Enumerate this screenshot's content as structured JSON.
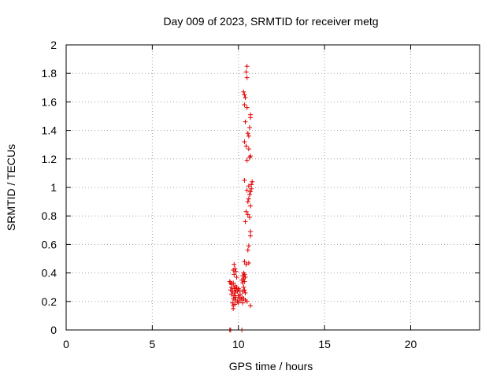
{
  "chart_data": {
    "type": "scatter",
    "title": "Day 009 of 2023, SRMTID for receiver metg",
    "xlabel": "GPS time / hours",
    "ylabel": "SRMTID / TECUs",
    "xlim": [
      0,
      24
    ],
    "ylim": [
      0,
      2
    ],
    "xticks": [
      0,
      5,
      10,
      15,
      20
    ],
    "xtick_labels": [
      "0",
      "5",
      "10",
      "15",
      "20"
    ],
    "yticks": [
      0,
      0.2,
      0.4,
      0.6,
      0.8,
      1.0,
      1.2,
      1.4,
      1.6,
      1.8,
      2.0
    ],
    "ytick_labels": [
      "0",
      "0.2",
      "0.4",
      "0.6",
      "0.8",
      "1",
      "1.2",
      "1.4",
      "1.6",
      "1.8",
      "2"
    ],
    "grid": true,
    "marker": "plus",
    "color": "#e00000",
    "series": [
      {
        "points": [
          [
            9.5,
            0.0
          ],
          [
            9.55,
            0.0
          ],
          [
            10.2,
            0.0
          ],
          [
            10.5,
            1.85
          ],
          [
            10.45,
            1.81
          ],
          [
            10.5,
            1.77
          ],
          [
            10.3,
            1.67
          ],
          [
            10.35,
            1.65
          ],
          [
            10.4,
            1.63
          ],
          [
            10.35,
            1.58
          ],
          [
            10.5,
            1.56
          ],
          [
            10.7,
            1.51
          ],
          [
            10.7,
            1.49
          ],
          [
            10.4,
            1.46
          ],
          [
            10.65,
            1.42
          ],
          [
            10.55,
            1.38
          ],
          [
            10.6,
            1.36
          ],
          [
            10.35,
            1.32
          ],
          [
            10.45,
            1.29
          ],
          [
            10.6,
            1.27
          ],
          [
            10.7,
            1.22
          ],
          [
            10.65,
            1.21
          ],
          [
            10.5,
            1.19
          ],
          [
            10.35,
            1.05
          ],
          [
            10.8,
            1.04
          ],
          [
            10.75,
            1.02
          ],
          [
            10.6,
            1.01
          ],
          [
            10.75,
            0.99
          ],
          [
            10.5,
            0.98
          ],
          [
            10.7,
            0.97
          ],
          [
            10.65,
            0.95
          ],
          [
            10.6,
            0.92
          ],
          [
            10.55,
            0.9
          ],
          [
            10.7,
            0.87
          ],
          [
            10.45,
            0.83
          ],
          [
            10.55,
            0.81
          ],
          [
            10.65,
            0.79
          ],
          [
            10.4,
            0.76
          ],
          [
            10.7,
            0.69
          ],
          [
            10.7,
            0.66
          ],
          [
            10.6,
            0.59
          ],
          [
            10.55,
            0.56
          ],
          [
            10.35,
            0.48
          ],
          [
            10.6,
            0.47
          ],
          [
            10.45,
            0.46
          ],
          [
            9.75,
            0.46
          ],
          [
            9.8,
            0.43
          ],
          [
            9.7,
            0.42
          ],
          [
            9.85,
            0.41
          ],
          [
            9.75,
            0.39
          ],
          [
            9.9,
            0.37
          ],
          [
            10.3,
            0.4
          ],
          [
            10.35,
            0.39
          ],
          [
            10.25,
            0.38
          ],
          [
            10.4,
            0.37
          ],
          [
            10.3,
            0.36
          ],
          [
            10.2,
            0.35
          ],
          [
            10.35,
            0.34
          ],
          [
            10.25,
            0.33
          ],
          [
            9.5,
            0.34
          ],
          [
            9.55,
            0.33
          ],
          [
            9.6,
            0.32
          ],
          [
            9.7,
            0.33
          ],
          [
            9.8,
            0.31
          ],
          [
            9.6,
            0.3
          ],
          [
            9.75,
            0.29
          ],
          [
            9.85,
            0.28
          ],
          [
            9.9,
            0.3
          ],
          [
            10.0,
            0.29
          ],
          [
            9.55,
            0.28
          ],
          [
            9.65,
            0.27
          ],
          [
            9.8,
            0.26
          ],
          [
            9.95,
            0.27
          ],
          [
            10.05,
            0.28
          ],
          [
            10.3,
            0.3
          ],
          [
            10.35,
            0.28
          ],
          [
            10.25,
            0.27
          ],
          [
            10.4,
            0.26
          ],
          [
            9.6,
            0.25
          ],
          [
            9.75,
            0.24
          ],
          [
            9.85,
            0.23
          ],
          [
            10.0,
            0.24
          ],
          [
            10.1,
            0.25
          ],
          [
            9.7,
            0.22
          ],
          [
            9.8,
            0.21
          ],
          [
            9.95,
            0.2
          ],
          [
            10.05,
            0.22
          ],
          [
            10.15,
            0.21
          ],
          [
            10.2,
            0.23
          ],
          [
            10.3,
            0.22
          ],
          [
            10.4,
            0.21
          ],
          [
            10.5,
            0.2
          ],
          [
            9.65,
            0.19
          ],
          [
            9.7,
            0.17
          ],
          [
            9.8,
            0.18
          ],
          [
            10.0,
            0.19
          ],
          [
            10.25,
            0.19
          ],
          [
            9.7,
            0.15
          ],
          [
            10.7,
            0.17
          ]
        ]
      }
    ]
  }
}
